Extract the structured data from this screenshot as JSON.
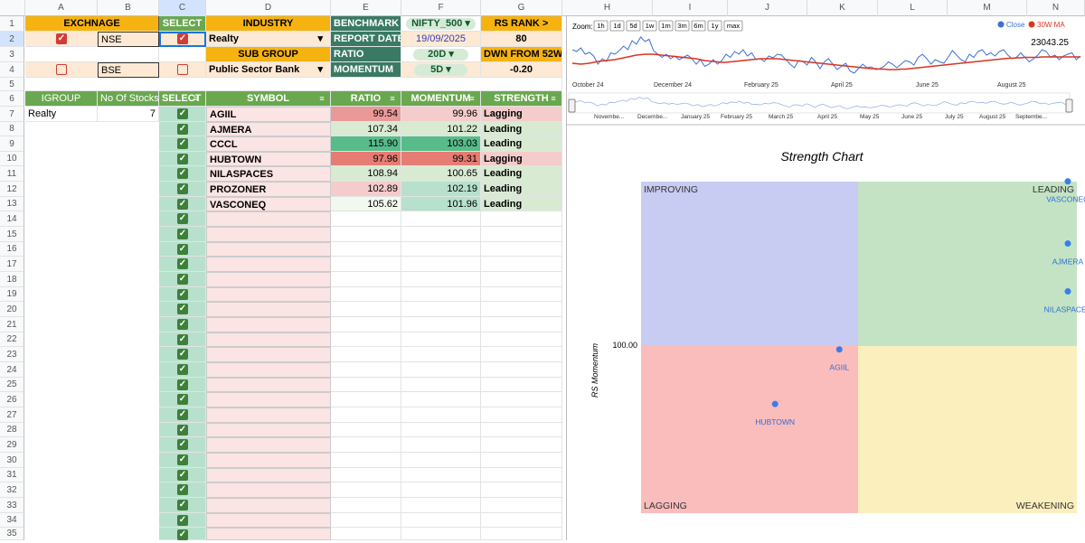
{
  "columns": [
    "A",
    "B",
    "C",
    "D",
    "E",
    "F",
    "G",
    "H",
    "I",
    "J",
    "K",
    "L",
    "M",
    "N"
  ],
  "rows": [
    "1",
    "2",
    "3",
    "4",
    "5",
    "6",
    "7",
    "8",
    "9",
    "10",
    "11",
    "12",
    "13",
    "14",
    "15",
    "16",
    "17",
    "18",
    "19",
    "20",
    "21",
    "22",
    "23",
    "24",
    "25",
    "26",
    "27",
    "28",
    "29",
    "30",
    "31",
    "32",
    "33",
    "34",
    "35"
  ],
  "top": {
    "exchange_hdr": "EXCHNAGE",
    "select_hdr": "SELECT",
    "industry_hdr": "INDUSTRY",
    "benchmark_lbl": "BENCHMARK",
    "benchmark_val": "NIFTY_500",
    "rsrank_lbl": "RS RANK >",
    "exch1": "NSE",
    "industry_val": "Realty",
    "report_date_lbl": "REPORT DATE",
    "report_date_val": "19/09/2025",
    "rsrank_val": "80",
    "subgroup_lbl": "SUB GROUP",
    "ratio_lbl": "RATIO",
    "ratio_val": "20D",
    "dwn_lbl": "DWN FROM 52W",
    "exch2": "BSE",
    "subgroup_val": "Public Sector Bank",
    "momentum_lbl": "MOMENTUM",
    "momentum_val": "5D",
    "dwn_val": "-0.20"
  },
  "table": {
    "igroup_hdr": "IGROUP",
    "nostocks_hdr": "No Of Stocks",
    "select_hdr": "SELECT",
    "symbol_hdr": "SYMBOL",
    "ratio_hdr": "RATIO",
    "momentum_hdr": "MOMENTUM",
    "strength_hdr": "STRENGTH",
    "igroup_val": "Realty",
    "nostocks_val": "7",
    "rows": [
      {
        "symbol": "AGIIL",
        "ratio": "99.54",
        "momentum": "99.96",
        "strength": "Lagging",
        "ratio_color": "#ea9999",
        "mom_color": "#f4cccc",
        "str_color": "#f4cccc"
      },
      {
        "symbol": "AJMERA",
        "ratio": "107.34",
        "momentum": "101.22",
        "strength": "Leading",
        "ratio_color": "#d9ead3",
        "mom_color": "#d9ead3",
        "str_color": "#d9ead3"
      },
      {
        "symbol": "CCCL",
        "ratio": "115.90",
        "momentum": "103.03",
        "strength": "Leading",
        "ratio_color": "#57bb8a",
        "mom_color": "#57bb8a",
        "str_color": "#d9ead3"
      },
      {
        "symbol": "HUBTOWN",
        "ratio": "97.96",
        "momentum": "99.31",
        "strength": "Lagging",
        "ratio_color": "#e67c73",
        "mom_color": "#e67c73",
        "str_color": "#f4cccc"
      },
      {
        "symbol": "NILASPACES",
        "ratio": "108.94",
        "momentum": "100.65",
        "strength": "Leading",
        "ratio_color": "#d9ead3",
        "mom_color": "#d9ead3",
        "str_color": "#d9ead3"
      },
      {
        "symbol": "PROZONER",
        "ratio": "102.89",
        "momentum": "102.19",
        "strength": "Leading",
        "ratio_color": "#f4cccc",
        "mom_color": "#b7e1cd",
        "str_color": "#d9ead3"
      },
      {
        "symbol": "VASCONEQ",
        "ratio": "105.62",
        "momentum": "101.96",
        "strength": "Leading",
        "ratio_color": "#f1f8ee",
        "mom_color": "#b7e1cd",
        "str_color": "#d9ead3"
      }
    ]
  },
  "linechart": {
    "zoom_label": "Zoom:",
    "zoom_buttons": [
      "1h",
      "1d",
      "5d",
      "1w",
      "1m",
      "3m",
      "6m",
      "1y",
      "max"
    ],
    "legend_close": "Close",
    "legend_ma": "30W MA",
    "last_value": "23043.25",
    "xlabels": [
      "October 24",
      "December 24",
      "February 25",
      "April 25",
      "June 25",
      "August 25"
    ],
    "nav_labels": [
      "Novembe...",
      "Decembe...",
      "January 25",
      "February 25",
      "March 25",
      "April 25",
      "May 25",
      "June 25",
      "July 25",
      "August 25",
      "Septembe..."
    ],
    "close_color": "#3b6fd8",
    "ma_color": "#d9341f"
  },
  "chart_data": [
    {
      "type": "line",
      "series": [
        {
          "name": "Close",
          "values": [
            0.62,
            0.58,
            0.66,
            0.52,
            0.56,
            0.48,
            0.3,
            0.42,
            0.36,
            0.55,
            0.52,
            0.6,
            0.7,
            0.62,
            0.82,
            0.74,
            0.9,
            0.8,
            0.85,
            0.6,
            0.52,
            0.45,
            0.52,
            0.42,
            0.48,
            0.4,
            0.45,
            0.5,
            0.42,
            0.3,
            0.4,
            0.25,
            0.3,
            0.4,
            0.3,
            0.38,
            0.52,
            0.45,
            0.58,
            0.52,
            0.62,
            0.48,
            0.55,
            0.4,
            0.42,
            0.36,
            0.48,
            0.44,
            0.52,
            0.5,
            0.4,
            0.3,
            0.22,
            0.38,
            0.36,
            0.28,
            0.45,
            0.35,
            0.2,
            0.35,
            0.42,
            0.3,
            0.18,
            0.25,
            0.32,
            0.15,
            0.1,
            0.2,
            0.3,
            0.22,
            0.24,
            0.18,
            0.2,
            0.25,
            0.35,
            0.3,
            0.22,
            0.3,
            0.38,
            0.35,
            0.28,
            0.45,
            0.52,
            0.42,
            0.3,
            0.4,
            0.35,
            0.32,
            0.45,
            0.6,
            0.5,
            0.4,
            0.35,
            0.52,
            0.45,
            0.58,
            0.62,
            0.5,
            0.55,
            0.48,
            0.58,
            0.62,
            0.5,
            0.42,
            0.45,
            0.55,
            0.45,
            0.35,
            0.42,
            0.5,
            0.62,
            0.58,
            0.45,
            0.5,
            0.4,
            0.48,
            0.52,
            0.55,
            0.4,
            0.48
          ]
        },
        {
          "name": "30W MA",
          "values": [
            0.32,
            0.31,
            0.3,
            0.31,
            0.32,
            0.34,
            0.36,
            0.37,
            0.38,
            0.39,
            0.4,
            0.42,
            0.44,
            0.46,
            0.48,
            0.5,
            0.51,
            0.52,
            0.52,
            0.52,
            0.51,
            0.5,
            0.49,
            0.48,
            0.47,
            0.46,
            0.45,
            0.44,
            0.43,
            0.42,
            0.4,
            0.38,
            0.37,
            0.36,
            0.35,
            0.34,
            0.34,
            0.35,
            0.36,
            0.37,
            0.38,
            0.39,
            0.4,
            0.41,
            0.42,
            0.42,
            0.42,
            0.42,
            0.42,
            0.41,
            0.4,
            0.39,
            0.38,
            0.37,
            0.36,
            0.35,
            0.34,
            0.33,
            0.32,
            0.31,
            0.3,
            0.29,
            0.28,
            0.27,
            0.26,
            0.25,
            0.24,
            0.23,
            0.22,
            0.21,
            0.2,
            0.2,
            0.19,
            0.19,
            0.18,
            0.18,
            0.18,
            0.19,
            0.19,
            0.2,
            0.21,
            0.22,
            0.23,
            0.24,
            0.25,
            0.26,
            0.27,
            0.28,
            0.29,
            0.3,
            0.31,
            0.32,
            0.33,
            0.34,
            0.35,
            0.36,
            0.37,
            0.38,
            0.39,
            0.4,
            0.41,
            0.42,
            0.43,
            0.43,
            0.44,
            0.44,
            0.45,
            0.45,
            0.45,
            0.45,
            0.46,
            0.46,
            0.46,
            0.46,
            0.46,
            0.46,
            0.46,
            0.46,
            0.46,
            0.46
          ]
        }
      ]
    },
    {
      "type": "scatter",
      "title": "Strength Chart",
      "ylabel": "RS Momentum",
      "ytick": "100.00",
      "quadrants": {
        "improving": "IMPROVING",
        "leading": "LEADING",
        "lagging": "LAGGING",
        "weakening": "WEAKENING"
      },
      "colors": {
        "improving": "#c9ccf2",
        "leading": "#c4e3c4",
        "lagging": "#fbbcbc",
        "weakening": "#fcefbe",
        "point": "#3b7de8"
      },
      "points": [
        {
          "label": "VASCONEQ",
          "x": 105.62,
          "y": 101.96
        },
        {
          "label": "AJMERA",
          "x": 107.34,
          "y": 101.22
        },
        {
          "label": "NILASPACES",
          "x": 108.94,
          "y": 100.65
        },
        {
          "label": "AGIIL",
          "x": 99.54,
          "y": 99.96
        },
        {
          "label": "HUBTOWN",
          "x": 97.96,
          "y": 99.31
        }
      ]
    }
  ]
}
